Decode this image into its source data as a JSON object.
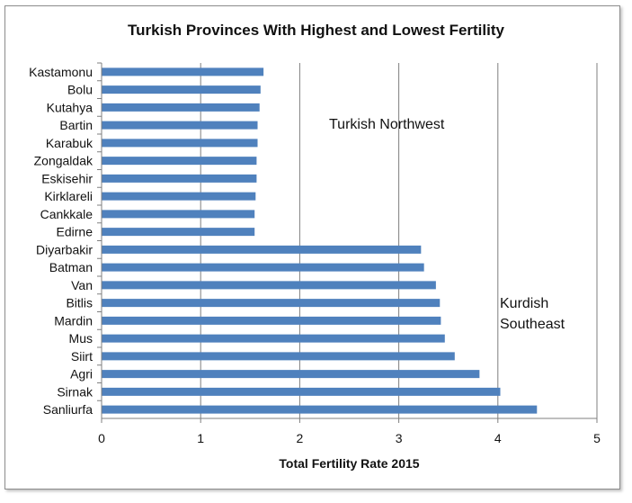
{
  "chart_data": {
    "type": "bar",
    "orientation": "horizontal",
    "title": "Turkish Provinces With Highest and Lowest Fertility",
    "xlabel": "Total Fertility Rate 2015",
    "ylabel": "",
    "xlim": [
      0,
      5
    ],
    "xticks": [
      0,
      1,
      2,
      3,
      4,
      5
    ],
    "grid": "vertical",
    "legend": "none",
    "bar_color": "#4f81bd",
    "categories": [
      "Kastamonu",
      "Bolu",
      "Kutahya",
      "Bartin",
      "Karabuk",
      "Zongaldak",
      "Eskisehir",
      "Kirklareli",
      "Cankkale",
      "Edirne",
      "Diyarbakir",
      "Batman",
      "Van",
      "Bitlis",
      "Mardin",
      "Mus",
      "Siirt",
      "Agri",
      "Sirnak",
      "Sanliurfa"
    ],
    "values": [
      1.63,
      1.6,
      1.59,
      1.57,
      1.57,
      1.56,
      1.56,
      1.55,
      1.54,
      1.54,
      3.22,
      3.25,
      3.37,
      3.41,
      3.42,
      3.46,
      3.56,
      3.81,
      4.02,
      4.39
    ],
    "annotations": [
      {
        "text": "Turkish Northwest"
      },
      {
        "text": "Kurdish"
      },
      {
        "text": "Southeast"
      }
    ]
  }
}
